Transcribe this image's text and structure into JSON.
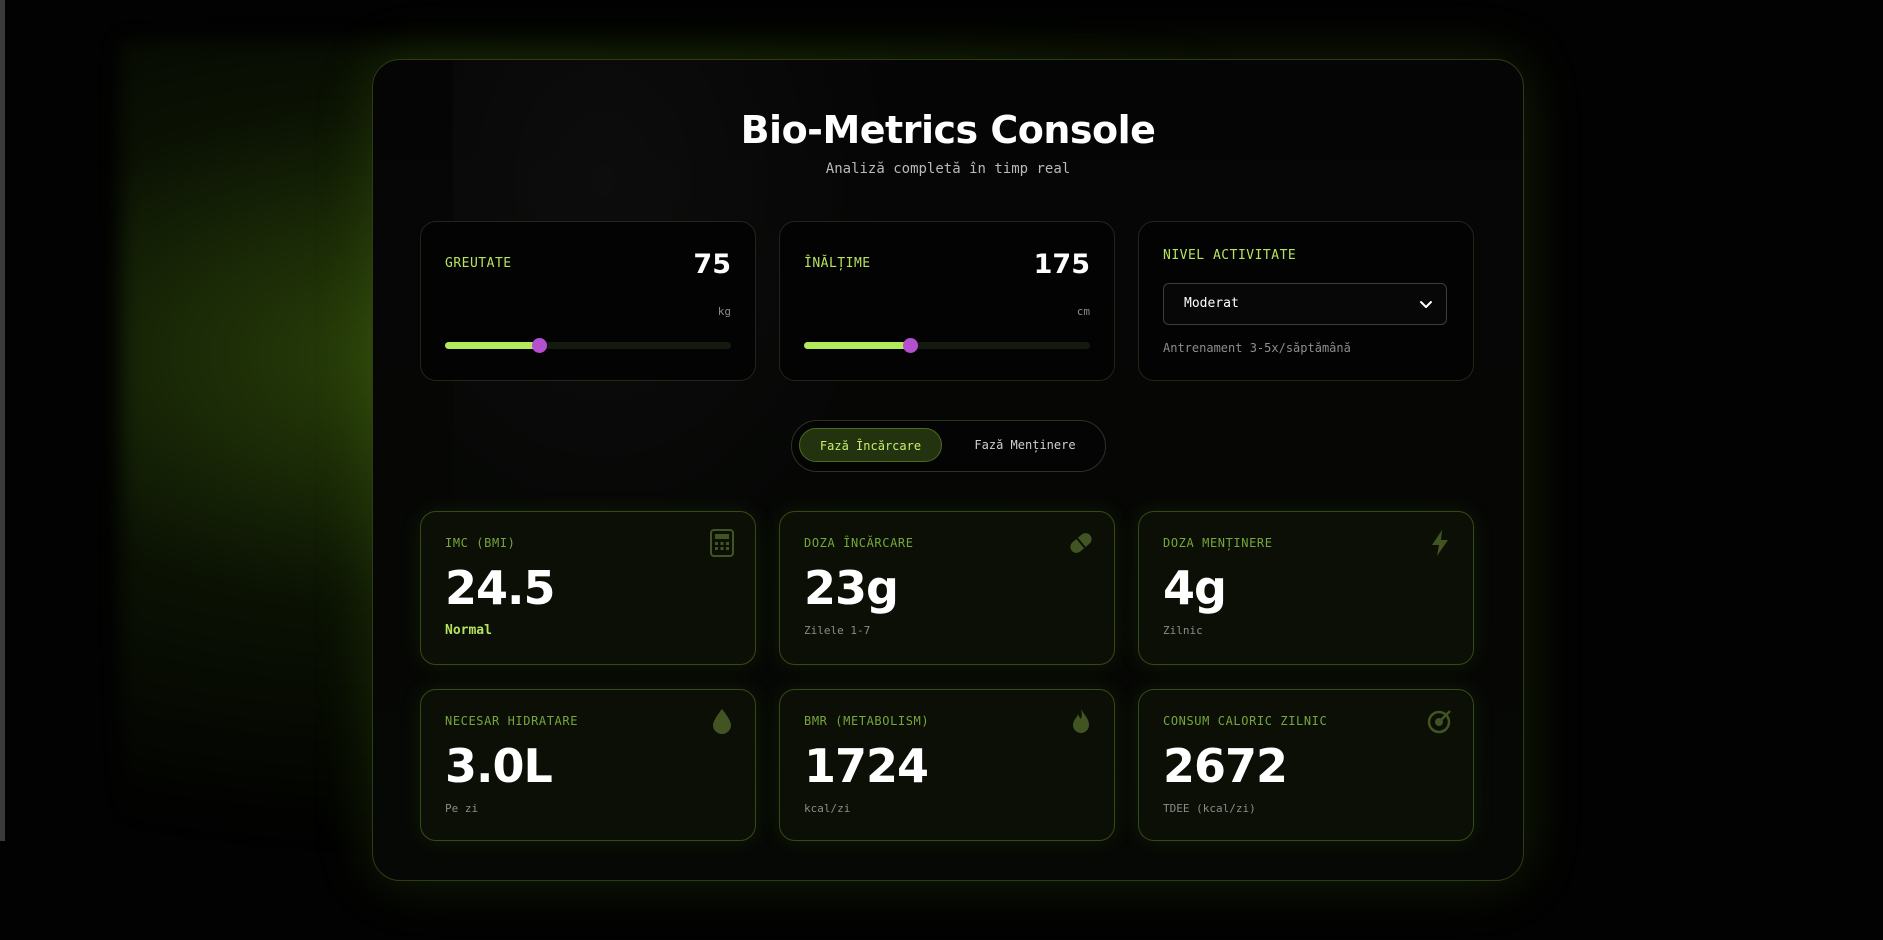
{
  "header": {
    "title": "Bio-Metrics Console",
    "subtitle": "Analiză completă în timp real"
  },
  "inputs": {
    "weight": {
      "label": "GREUTATE",
      "value": "75",
      "unit": "kg",
      "slider_fraction": 0.33
    },
    "height": {
      "label": "ÎNĂLȚIME",
      "value": "175",
      "unit": "cm",
      "slider_fraction": 0.37
    },
    "activity": {
      "label": "NIVEL ACTIVITATE",
      "selected": "Moderat",
      "hint": "Antrenament 3-5x/săptămână"
    }
  },
  "phase_toggle": {
    "loading_label": "Fază Încărcare",
    "maintenance_label": "Fază Menținere",
    "active": "loading"
  },
  "metrics": [
    {
      "label": "IMC (BMI)",
      "value": "24.5",
      "sub": "Normal",
      "icon": "calculator-icon"
    },
    {
      "label": "DOZA ÎNCĂRCARE",
      "value": "23g",
      "sub": "Zilele 1-7",
      "icon": "pill-icon"
    },
    {
      "label": "DOZA MENȚINERE",
      "value": "4g",
      "sub": "Zilnic",
      "icon": "bolt-icon"
    },
    {
      "label": "NECESAR HIDRATARE",
      "value": "3.0L",
      "sub": "Pe zi",
      "icon": "water-drop-icon"
    },
    {
      "label": "BMR (METABOLISM)",
      "value": "1724",
      "sub": "kcal/zi",
      "icon": "flame-icon"
    },
    {
      "label": "CONSUM CALORIC ZILNIC",
      "value": "2672",
      "sub": "TDEE (kcal/zi)",
      "icon": "target-icon"
    }
  ],
  "colors": {
    "accent": "#b3ea5c",
    "slider_thumb": "#b44fd0",
    "background": "#020202"
  }
}
